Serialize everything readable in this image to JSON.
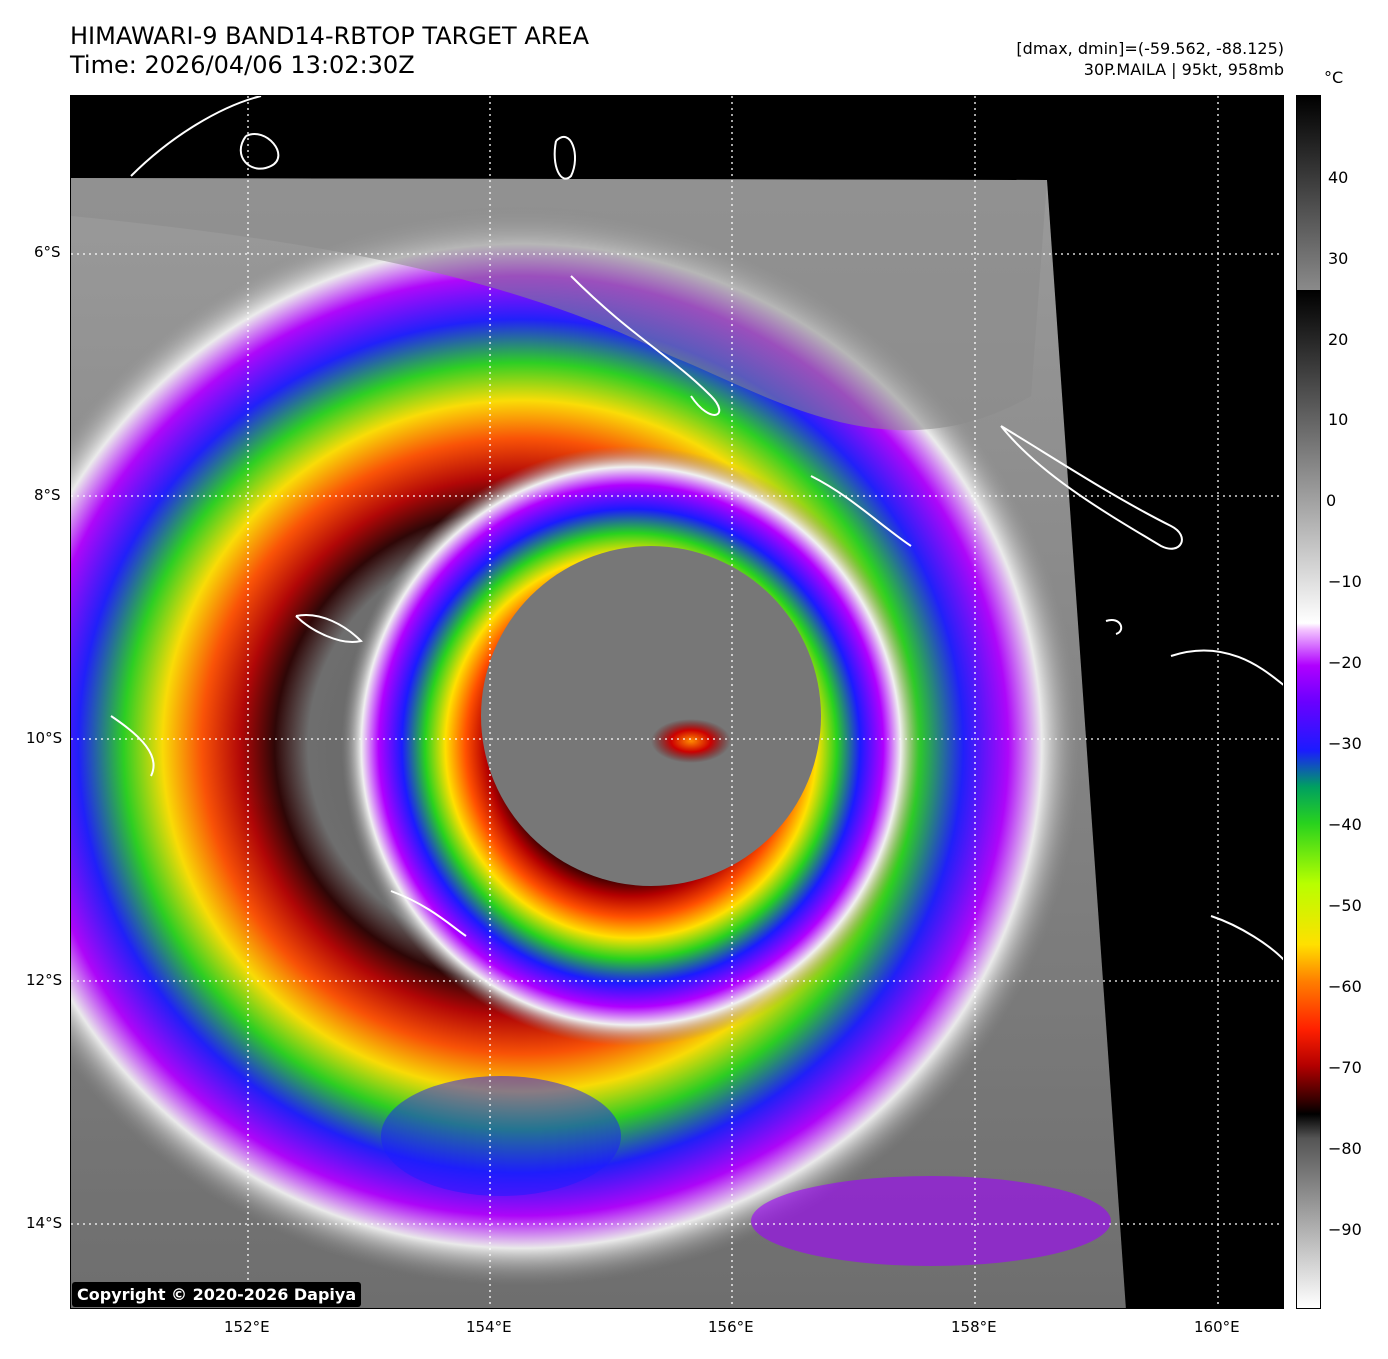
{
  "header": {
    "title_line1": "HIMAWARI-9 BAND14-RBTOP TARGET AREA",
    "title_line2": "Time: 2026/04/06 13:02:30Z",
    "meta_line1": "[dmax, dmin]=(-59.562, -88.125)",
    "meta_line2": "30P.MAILA | 95kt, 958mb"
  },
  "map": {
    "lat_labels": [
      "6°S",
      "8°S",
      "10°S",
      "12°S",
      "14°S"
    ],
    "lon_labels": [
      "152°E",
      "154°E",
      "156°E",
      "158°E",
      "160°E"
    ],
    "storm_name": "MAILA"
  },
  "colorbar": {
    "unit": "°C",
    "ticks": [
      "40",
      "30",
      "20",
      "10",
      "0",
      "−10",
      "−20",
      "−30",
      "−40",
      "−50",
      "−60",
      "−70",
      "−80",
      "−90"
    ]
  },
  "copyright": "Copyright © 2020-2026 Dapiya"
}
